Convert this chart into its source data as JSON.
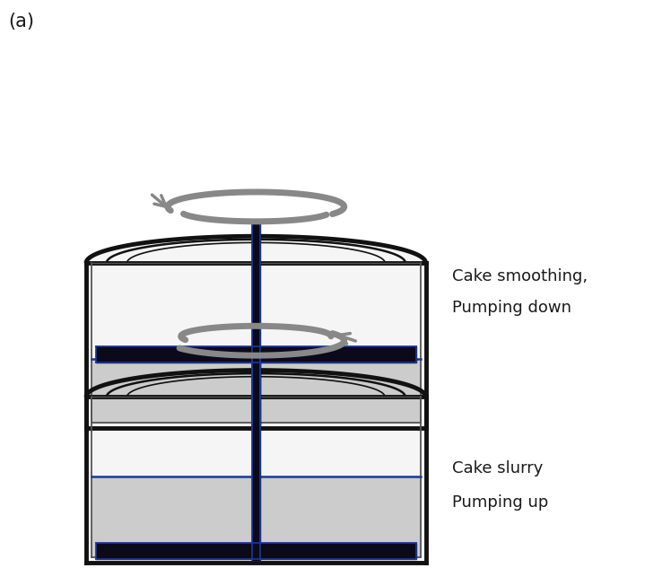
{
  "bg_color": "#ffffff",
  "label_a": "(a)",
  "label_a_fontsize": 15,
  "text1_line1": "Cake smoothing,",
  "text1_line2": "Pumping down",
  "text2_line1": "Cake slurry",
  "text2_line2": "Pumping up",
  "text_fontsize": 13,
  "outer_lw": 3.0,
  "inner_lw": 1.5,
  "shaft_color": "#0a0a1a",
  "blade_color": "#0a0a1a",
  "arrow_color": "#888888",
  "blue_line_color": "#1a3a99",
  "dome_arc_color": "#111111",
  "wall_color": "#111111",
  "shaft_blue": "#1a3a99",
  "blade_blue": "#1a3a99",
  "liquid_gray": "#cccccc",
  "interior_white": "#f5f5f5"
}
